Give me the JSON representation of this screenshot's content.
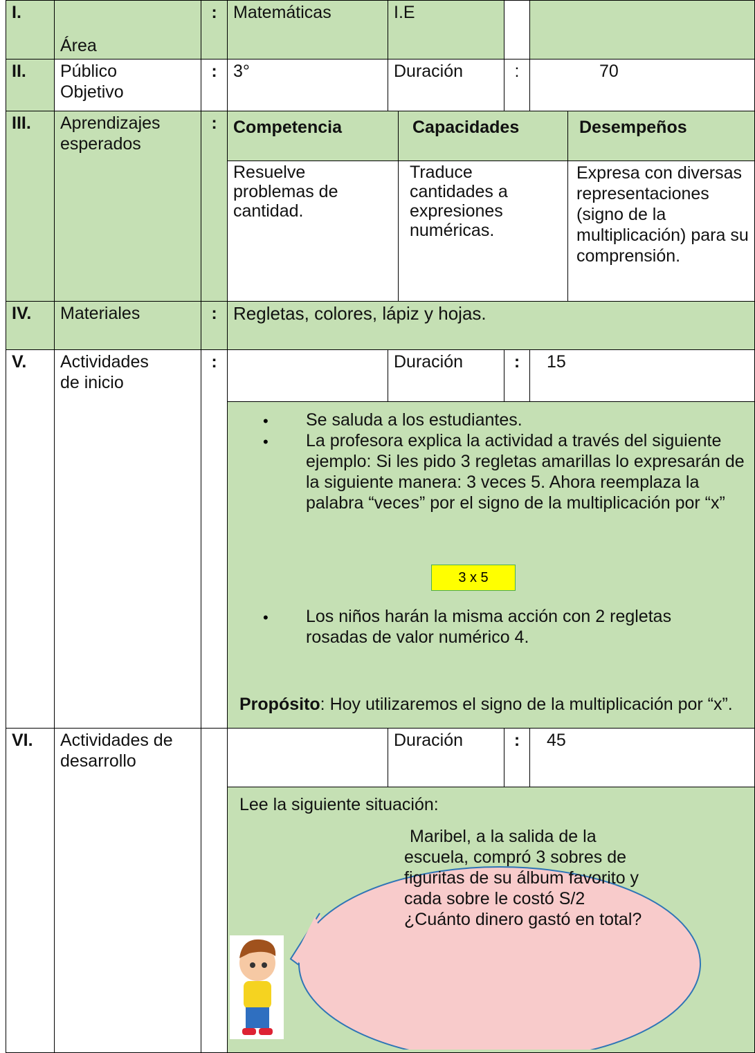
{
  "rows": [
    {
      "num": "I.",
      "label": "Área",
      "colon": ":",
      "cells": [
        "Matemáticas",
        "I.E"
      ]
    },
    {
      "num": "II.",
      "label": "Público Objetivo",
      "colon": ":",
      "cells": [
        "3°",
        "Duración",
        ":",
        "70"
      ]
    },
    {
      "num": "III.",
      "label": "Aprendizajes esperados",
      "colon": ":",
      "headers": [
        "Competencia",
        "Capacidades",
        "Desempeños"
      ],
      "cells": [
        "Resuelve problemas de cantidad.",
        "Traduce cantidades a expresiones numéricas.",
        "Expresa con diversas representaciones (signo de la multiplicación) para su comprensión."
      ]
    },
    {
      "num": "IV.",
      "label": "Materiales",
      "colon": ":",
      "cells": [
        "Regletas, colores, lápiz y hojas."
      ]
    },
    {
      "num": "V.",
      "label": "Actividades de inicio",
      "colon": ":",
      "cells": [
        "Duración",
        ":",
        "15"
      ],
      "bullets": [
        "Se saluda a los estudiantes.",
        "La profesora explica la actividad a través del siguiente ejemplo: Si les pido 3 regletas amarillas lo expresarán de la siguiente manera: 3 veces 5. Ahora reemplaza la palabra “veces” por el signo de la multiplicación por “x”",
        "Los niños harán la misma acción con 2 regletas rosadas de valor numérico 4."
      ],
      "highlight": "3 x 5",
      "purpose_label": "Propósito",
      "purpose_text": ": Hoy utilizaremos el signo de la multiplicación por “x”."
    },
    {
      "num": "VI.",
      "label": "Actividades de desarrollo",
      "cells": [
        "Duración",
        ":",
        "45"
      ],
      "intro": "Lee la siguiente situación:",
      "bubble": "Maribel, a la salida de la escuela, compró 3 sobres de figuritas de su álbum favorito y cada sobre le costó S/2 ¿Cuánto dinero gastó en total?"
    }
  ]
}
